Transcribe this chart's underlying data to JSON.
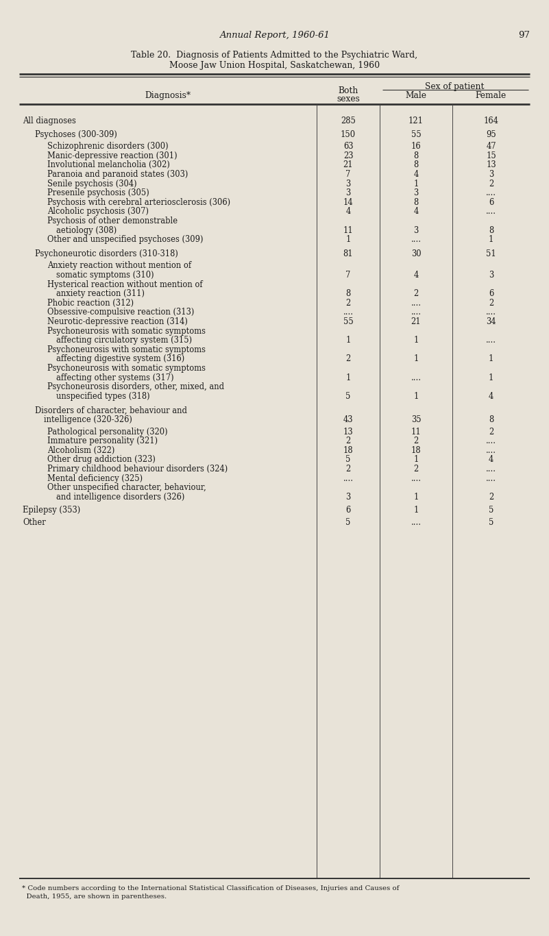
{
  "page_header": "Annual Report, 1960-61",
  "page_number": "97",
  "title_line1": "Table 20.  Diagnosis of Patients Admitted to the Psychiatric Ward,",
  "title_line2": "Moose Jaw Union Hospital, Saskatchewan, 1960",
  "footnote_line1": "* Code numbers according to the International Statistical Classification of Diseases, Injuries and Causes of",
  "footnote_line2": "  Death, 1955, are shown in parentheses.",
  "bg_color": "#e8e3d8",
  "text_color": "#1a1a1a",
  "font_size": 8.3,
  "header_font_size": 8.8,
  "rows": [
    {
      "label": "All diagnoses",
      "dots": true,
      "indent": 0,
      "both": "285",
      "male": "121",
      "female": "164",
      "space_before": 8,
      "cont": false,
      "sub": false
    },
    {
      "label": "Psychoses (300-309)",
      "dots": true,
      "indent": 1,
      "both": "150",
      "male": "55",
      "female": "95",
      "space_before": 6,
      "cont": false,
      "sub": false
    },
    {
      "label": "Schizophrenic disorders (300)",
      "dots": true,
      "indent": 2,
      "both": "63",
      "male": "16",
      "female": "47",
      "space_before": 4,
      "cont": false,
      "sub": false
    },
    {
      "label": "Manic-depressive reaction (301)",
      "dots": true,
      "indent": 2,
      "both": "23",
      "male": "8",
      "female": "15",
      "space_before": 0,
      "cont": false,
      "sub": false
    },
    {
      "label": "Involutional melancholia (302)",
      "dots": true,
      "indent": 2,
      "both": "21",
      "male": "8",
      "female": "13",
      "space_before": 0,
      "cont": false,
      "sub": false
    },
    {
      "label": "Paranoia and paranoid states (303)",
      "dots": true,
      "indent": 2,
      "both": "7",
      "male": "4",
      "female": "3",
      "space_before": 0,
      "cont": false,
      "sub": false
    },
    {
      "label": "Senile psychosis (304)",
      "dots": true,
      "indent": 2,
      "both": "3",
      "male": "1",
      "female": "2",
      "space_before": 0,
      "cont": false,
      "sub": false
    },
    {
      "label": "Presenile psychosis (305)",
      "dots": true,
      "indent": 2,
      "both": "3",
      "male": "3",
      "female": "....",
      "space_before": 0,
      "cont": false,
      "sub": false
    },
    {
      "label": "Psychosis with cerebral arteriosclerosis (306)",
      "dots": true,
      "indent": 2,
      "both": "14",
      "male": "8",
      "female": "6",
      "space_before": 0,
      "cont": false,
      "sub": false
    },
    {
      "label": "Alcoholic psychosis (307)",
      "dots": true,
      "indent": 2,
      "both": "4",
      "male": "4",
      "female": "....",
      "space_before": 0,
      "cont": false,
      "sub": false
    },
    {
      "label": "Psychosis of other demonstrable",
      "dots": false,
      "indent": 2,
      "both": "",
      "male": "",
      "female": "",
      "space_before": 0,
      "cont": true,
      "sub": false
    },
    {
      "label": "aetiology (308)",
      "dots": true,
      "indent": 2,
      "both": "11",
      "male": "3",
      "female": "8",
      "space_before": 0,
      "cont": false,
      "sub": true
    },
    {
      "label": "Other and unspecified psychoses (309)",
      "dots": true,
      "indent": 2,
      "both": "1",
      "male": "....",
      "female": "1",
      "space_before": 0,
      "cont": false,
      "sub": false
    },
    {
      "label": "Psychoneurotic disorders (310-318)",
      "dots": true,
      "indent": 1,
      "both": "81",
      "male": "30",
      "female": "51",
      "space_before": 7,
      "cont": false,
      "sub": false
    },
    {
      "label": "Anxiety reaction without mention of",
      "dots": false,
      "indent": 2,
      "both": "",
      "male": "",
      "female": "",
      "space_before": 4,
      "cont": true,
      "sub": false
    },
    {
      "label": "somatic symptoms (310)",
      "dots": true,
      "indent": 2,
      "both": "7",
      "male": "4",
      "female": "3",
      "space_before": 0,
      "cont": false,
      "sub": true
    },
    {
      "label": "Hysterical reaction without mention of",
      "dots": false,
      "indent": 2,
      "both": "",
      "male": "",
      "female": "",
      "space_before": 0,
      "cont": true,
      "sub": false
    },
    {
      "label": "anxiety reaction (311)",
      "dots": true,
      "indent": 2,
      "both": "8",
      "male": "2",
      "female": "6",
      "space_before": 0,
      "cont": false,
      "sub": true
    },
    {
      "label": "Phobic reaction (312)",
      "dots": true,
      "indent": 2,
      "both": "2",
      "male": "....",
      "female": "2",
      "space_before": 0,
      "cont": false,
      "sub": false
    },
    {
      "label": "Obsessive-compulsive reaction (313)",
      "dots": true,
      "indent": 2,
      "both": "....",
      "male": "....",
      "female": "....",
      "space_before": 0,
      "cont": false,
      "sub": false
    },
    {
      "label": "Neurotic-depressive reaction (314)",
      "dots": true,
      "indent": 2,
      "both": "55",
      "male": "21",
      "female": "34",
      "space_before": 0,
      "cont": false,
      "sub": false
    },
    {
      "label": "Psychoneurosis with somatic symptoms",
      "dots": false,
      "indent": 2,
      "both": "",
      "male": "",
      "female": "",
      "space_before": 0,
      "cont": true,
      "sub": false
    },
    {
      "label": "affecting circulatory system (315)",
      "dots": true,
      "indent": 2,
      "both": "1",
      "male": "1",
      "female": "....",
      "space_before": 0,
      "cont": false,
      "sub": true
    },
    {
      "label": "Psychoneurosis with somatic symptoms",
      "dots": false,
      "indent": 2,
      "both": "",
      "male": "",
      "female": "",
      "space_before": 0,
      "cont": true,
      "sub": false
    },
    {
      "label": "affecting digestive system (316)",
      "dots": true,
      "indent": 2,
      "both": "2",
      "male": "1",
      "female": "1",
      "space_before": 0,
      "cont": false,
      "sub": true
    },
    {
      "label": "Psychoneurosis with somatic symptoms",
      "dots": false,
      "indent": 2,
      "both": "",
      "male": "",
      "female": "",
      "space_before": 0,
      "cont": true,
      "sub": false
    },
    {
      "label": "affecting other systems (317)",
      "dots": true,
      "indent": 2,
      "both": "1",
      "male": "....",
      "female": "1",
      "space_before": 0,
      "cont": false,
      "sub": true
    },
    {
      "label": "Psychoneurosis disorders, other, mixed, and",
      "dots": false,
      "indent": 2,
      "both": "",
      "male": "",
      "female": "",
      "space_before": 0,
      "cont": true,
      "sub": false
    },
    {
      "label": "unspecified types (318)",
      "dots": true,
      "indent": 2,
      "both": "5",
      "male": "1",
      "female": "4",
      "space_before": 0,
      "cont": false,
      "sub": true
    },
    {
      "label": "Disorders of character, behaviour and",
      "dots": false,
      "indent": 1,
      "both": "",
      "male": "",
      "female": "",
      "space_before": 7,
      "cont": true,
      "sub": false
    },
    {
      "label": "intelligence (320-326)",
      "dots": true,
      "indent": 1,
      "both": "43",
      "male": "35",
      "female": "8",
      "space_before": 0,
      "cont": false,
      "sub": true
    },
    {
      "label": "Pathological personality (320)",
      "dots": true,
      "indent": 2,
      "both": "13",
      "male": "11",
      "female": "2",
      "space_before": 4,
      "cont": false,
      "sub": false
    },
    {
      "label": "Immature personality (321)",
      "dots": true,
      "indent": 2,
      "both": "2",
      "male": "2",
      "female": "....",
      "space_before": 0,
      "cont": false,
      "sub": false
    },
    {
      "label": "Alcoholism (322)",
      "dots": true,
      "indent": 2,
      "both": "18",
      "male": "18",
      "female": "....",
      "space_before": 0,
      "cont": false,
      "sub": false
    },
    {
      "label": "Other drug addiction (323)",
      "dots": true,
      "indent": 2,
      "both": "5",
      "male": "1",
      "female": "4",
      "space_before": 0,
      "cont": false,
      "sub": false
    },
    {
      "label": "Primary childhood behaviour disorders (324)",
      "dots": true,
      "indent": 2,
      "both": "2",
      "male": "2",
      "female": "....",
      "space_before": 0,
      "cont": false,
      "sub": false
    },
    {
      "label": "Mental deficiency (325)",
      "dots": true,
      "indent": 2,
      "both": "....",
      "male": "....",
      "female": "....",
      "space_before": 0,
      "cont": false,
      "sub": false
    },
    {
      "label": "Other unspecified character, behaviour,",
      "dots": false,
      "indent": 2,
      "both": "",
      "male": "",
      "female": "",
      "space_before": 0,
      "cont": true,
      "sub": false
    },
    {
      "label": "and intelligence disorders (326)",
      "dots": true,
      "indent": 2,
      "both": "3",
      "male": "1",
      "female": "2",
      "space_before": 0,
      "cont": false,
      "sub": true
    },
    {
      "label": "Epilepsy (353)",
      "dots": true,
      "indent": 0,
      "both": "6",
      "male": "1",
      "female": "5",
      "space_before": 6,
      "cont": false,
      "sub": false
    },
    {
      "label": "Other",
      "dots": true,
      "indent": 0,
      "both": "5",
      "male": "....",
      "female": "5",
      "space_before": 4,
      "cont": false,
      "sub": false
    }
  ]
}
